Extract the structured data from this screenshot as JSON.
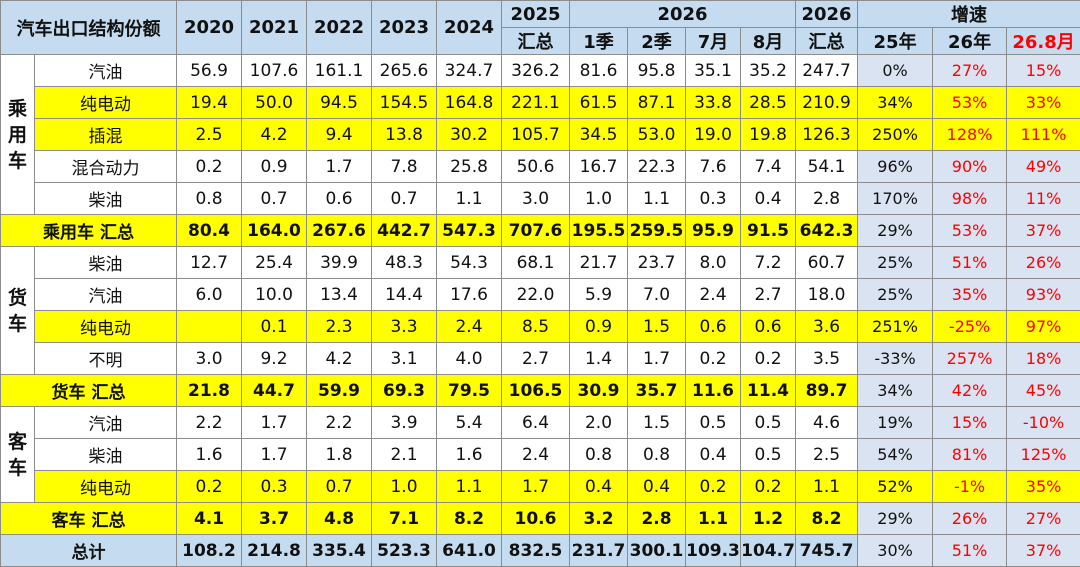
{
  "header": {
    "corner": "汽车出口结构份额",
    "years": [
      "2020",
      "2021",
      "2022",
      "2023",
      "2024"
    ],
    "y2025": "2025",
    "y2025_sub": "汇总",
    "y2026": "2026",
    "y2026_sub": [
      "1季",
      "2季",
      "7月",
      "8月"
    ],
    "y2026t": "2026",
    "y2026t_sub": "汇总",
    "growth": "增速",
    "growth_sub": [
      "25年",
      "26年",
      "26.8月"
    ]
  },
  "groups": [
    {
      "label": "乘用车",
      "rows": [
        {
          "name": "汽油",
          "vals": [
            "56.9",
            "107.6",
            "161.1",
            "265.6",
            "324.7",
            "326.2",
            "81.6",
            "95.8",
            "35.1",
            "35.2",
            "247.7"
          ],
          "g": [
            "0%",
            "27%",
            "15%"
          ],
          "style": "plain"
        },
        {
          "name": "纯电动",
          "vals": [
            "19.4",
            "50.0",
            "94.5",
            "154.5",
            "164.8",
            "221.1",
            "61.5",
            "87.1",
            "33.8",
            "28.5",
            "210.9"
          ],
          "g": [
            "34%",
            "53%",
            "33%"
          ],
          "style": "yellow"
        },
        {
          "name": "插混",
          "vals": [
            "2.5",
            "4.2",
            "9.4",
            "13.8",
            "30.2",
            "105.7",
            "34.5",
            "53.0",
            "19.0",
            "19.8",
            "126.3"
          ],
          "g": [
            "250%",
            "128%",
            "111%"
          ],
          "style": "yellow"
        },
        {
          "name": "混合动力",
          "vals": [
            "0.2",
            "0.9",
            "1.7",
            "7.8",
            "25.8",
            "50.6",
            "16.7",
            "22.3",
            "7.6",
            "7.4",
            "54.1"
          ],
          "g": [
            "96%",
            "90%",
            "49%"
          ],
          "style": "plain"
        },
        {
          "name": "柴油",
          "vals": [
            "0.8",
            "0.7",
            "0.6",
            "0.7",
            "1.1",
            "3.0",
            "1.0",
            "1.1",
            "0.3",
            "0.4",
            "2.8"
          ],
          "g": [
            "170%",
            "98%",
            "11%"
          ],
          "style": "plain"
        }
      ],
      "subtotal": {
        "name": "乘用车 汇总",
        "vals": [
          "80.4",
          "164.0",
          "267.6",
          "442.7",
          "547.3",
          "707.6",
          "195.5",
          "259.5",
          "95.9",
          "91.5",
          "642.3"
        ],
        "g": [
          "29%",
          "53%",
          "37%"
        ]
      }
    },
    {
      "label": "货车",
      "rows": [
        {
          "name": "柴油",
          "vals": [
            "12.7",
            "25.4",
            "39.9",
            "48.3",
            "54.3",
            "68.1",
            "21.7",
            "23.7",
            "8.0",
            "7.2",
            "60.7"
          ],
          "g": [
            "25%",
            "51%",
            "26%"
          ],
          "style": "plain"
        },
        {
          "name": "汽油",
          "vals": [
            "6.0",
            "10.0",
            "13.4",
            "14.4",
            "17.6",
            "22.0",
            "5.9",
            "7.0",
            "2.4",
            "2.7",
            "18.0"
          ],
          "g": [
            "25%",
            "35%",
            "93%"
          ],
          "style": "plain"
        },
        {
          "name": "纯电动",
          "vals": [
            "",
            "0.1",
            "2.3",
            "3.3",
            "2.4",
            "8.5",
            "0.9",
            "1.5",
            "0.6",
            "0.6",
            "3.6"
          ],
          "g": [
            "251%",
            "-25%",
            "97%"
          ],
          "style": "yellow"
        },
        {
          "name": "不明",
          "vals": [
            "3.0",
            "9.2",
            "4.2",
            "3.1",
            "4.0",
            "2.7",
            "1.4",
            "1.7",
            "0.2",
            "0.2",
            "3.5"
          ],
          "g": [
            "-33%",
            "257%",
            "18%"
          ],
          "style": "plain"
        }
      ],
      "subtotal": {
        "name": "货车 汇总",
        "vals": [
          "21.8",
          "44.7",
          "59.9",
          "69.3",
          "79.5",
          "106.5",
          "30.9",
          "35.7",
          "11.6",
          "11.4",
          "89.7"
        ],
        "g": [
          "34%",
          "42%",
          "45%"
        ]
      }
    },
    {
      "label": "客车",
      "rows": [
        {
          "name": "汽油",
          "vals": [
            "2.2",
            "1.7",
            "2.2",
            "3.9",
            "5.4",
            "6.4",
            "2.0",
            "1.5",
            "0.5",
            "0.5",
            "4.6"
          ],
          "g": [
            "19%",
            "15%",
            "-10%"
          ],
          "style": "plain"
        },
        {
          "name": "柴油",
          "vals": [
            "1.6",
            "1.7",
            "1.8",
            "2.1",
            "1.6",
            "2.4",
            "0.8",
            "0.8",
            "0.4",
            "0.5",
            "2.5"
          ],
          "g": [
            "54%",
            "81%",
            "125%"
          ],
          "style": "plain"
        },
        {
          "name": "纯电动",
          "vals": [
            "0.2",
            "0.3",
            "0.7",
            "1.0",
            "1.1",
            "1.7",
            "0.4",
            "0.4",
            "0.2",
            "0.2",
            "1.1"
          ],
          "g": [
            "52%",
            "-1%",
            "35%"
          ],
          "style": "yellow"
        }
      ],
      "subtotal": {
        "name": "客车 汇总",
        "vals": [
          "4.1",
          "3.7",
          "4.8",
          "7.1",
          "8.2",
          "10.6",
          "3.2",
          "2.8",
          "1.1",
          "1.2",
          "8.2"
        ],
        "g": [
          "29%",
          "26%",
          "27%"
        ]
      }
    }
  ],
  "total": {
    "name": "总计",
    "vals": [
      "108.2",
      "214.8",
      "335.4",
      "523.3",
      "641.0",
      "832.5",
      "231.7",
      "300.1",
      "109.3",
      "104.7",
      "745.7"
    ],
    "g": [
      "30%",
      "51%",
      "37%"
    ]
  },
  "colors": {
    "red_text": "#ff0000",
    "yellow_fill": "#ffff00",
    "blue_header": "#c5dcf0",
    "growth_fill": "#dae3f2"
  }
}
